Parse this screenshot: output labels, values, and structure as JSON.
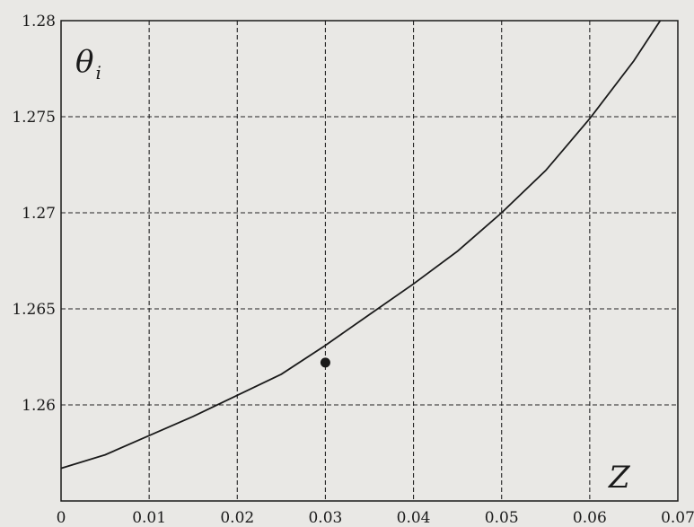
{
  "chart_data": {
    "type": "line",
    "title": "",
    "xlabel": "Z",
    "ylabel": {
      "symbol": "θ",
      "subscript": "i"
    },
    "xlim": [
      0,
      0.07
    ],
    "ylim": [
      1.255,
      1.28
    ],
    "xticks": [
      "0",
      "0.01",
      "0.02",
      "0.03",
      "0.04",
      "0.05",
      "0.06",
      "0.07"
    ],
    "yticks": [
      "1.26",
      "1.265",
      "1.27",
      "1.275",
      "1.28"
    ],
    "grid": true,
    "series": [
      {
        "x": [
          0,
          0.005,
          0.01,
          0.015,
          0.02,
          0.025,
          0.03,
          0.035,
          0.04,
          0.045,
          0.05,
          0.055,
          0.06,
          0.065,
          0.068
        ],
        "y": [
          1.2567,
          1.2574,
          1.2584,
          1.2594,
          1.2605,
          1.2616,
          1.2631,
          1.2647,
          1.2663,
          1.268,
          1.27,
          1.2722,
          1.2749,
          1.2779,
          1.28
        ]
      }
    ],
    "highlight_point": {
      "x": 0.03,
      "y": 1.2622
    },
    "colors": {
      "line": "#1a1a1a",
      "grid": "#222222",
      "background": "#e9e8e5"
    }
  }
}
